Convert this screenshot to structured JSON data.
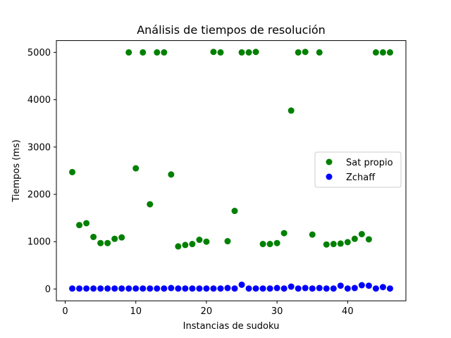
{
  "chart_data": {
    "type": "scatter",
    "title": "Análisis de tiempos de resolución",
    "xlabel": "Instancias de sudoku",
    "ylabel": "Tiempos (ms)",
    "xlim": [
      -1.25,
      48.25
    ],
    "ylim": [
      -250,
      5250
    ],
    "xticks": [
      0,
      10,
      20,
      30,
      40
    ],
    "yticks": [
      0,
      1000,
      2000,
      3000,
      4000,
      5000
    ],
    "grid": false,
    "legend_position": "center-right",
    "x": [
      1,
      2,
      3,
      4,
      5,
      6,
      7,
      8,
      9,
      10,
      11,
      12,
      13,
      14,
      15,
      16,
      17,
      18,
      19,
      20,
      21,
      22,
      23,
      24,
      25,
      26,
      27,
      28,
      29,
      30,
      31,
      32,
      33,
      34,
      35,
      36,
      37,
      38,
      39,
      40,
      41,
      42,
      43,
      44,
      45,
      46
    ],
    "series": [
      {
        "name": "Sat propio",
        "color": "#008000",
        "values": [
          2470,
          1350,
          1390,
          1100,
          970,
          970,
          1060,
          1090,
          5000,
          2550,
          5000,
          1790,
          5000,
          5000,
          2420,
          900,
          930,
          950,
          1040,
          1000,
          5010,
          5000,
          1010,
          1650,
          5000,
          5000,
          5010,
          950,
          950,
          970,
          1180,
          3770,
          5000,
          5010,
          1150,
          5000,
          940,
          950,
          960,
          990,
          1060,
          1160,
          1050,
          5000,
          5000,
          5000
        ]
      },
      {
        "name": "Zchaff",
        "color": "#0000ff",
        "values": [
          10,
          10,
          10,
          10,
          10,
          10,
          10,
          10,
          10,
          10,
          10,
          10,
          10,
          10,
          20,
          10,
          10,
          10,
          10,
          10,
          10,
          10,
          20,
          10,
          90,
          10,
          10,
          10,
          10,
          20,
          10,
          50,
          10,
          20,
          10,
          20,
          10,
          10,
          70,
          10,
          20,
          80,
          70,
          10,
          40,
          10
        ]
      }
    ]
  }
}
